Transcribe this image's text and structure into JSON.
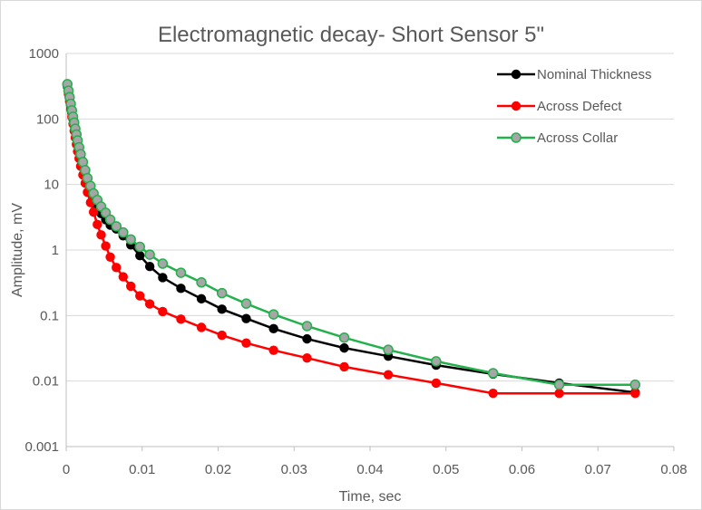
{
  "chart_data": {
    "type": "scatter",
    "title": "Electromagnetic decay- Short Sensor 5\"",
    "xlabel": "Time, sec",
    "ylabel": "Amplitude, mV",
    "xlim": [
      0,
      0.08
    ],
    "ylim": [
      0.001,
      1000
    ],
    "yscale": "log",
    "grid": "horizontal",
    "legend_position": "top-right",
    "x_ticks": [
      "0",
      "0.01",
      "0.02",
      "0.03",
      "0.04",
      "0.05",
      "0.06",
      "0.07",
      "0.08"
    ],
    "y_ticks": [
      "0.001",
      "0.01",
      "0.1",
      "1",
      "10",
      "100",
      "1000"
    ],
    "series": [
      {
        "name": "Nominal Thickness",
        "color": "#000000",
        "x": [
          0.00015,
          0.0003,
          0.00045,
          0.0006,
          0.00075,
          0.0009,
          0.00105,
          0.0012,
          0.00135,
          0.0015,
          0.0017,
          0.0019,
          0.0022,
          0.0025,
          0.0028,
          0.0032,
          0.0036,
          0.0041,
          0.0046,
          0.0052,
          0.0058,
          0.0066,
          0.0075,
          0.0085,
          0.0097,
          0.011,
          0.0127,
          0.0151,
          0.0178,
          0.0205,
          0.0237,
          0.0273,
          0.0317,
          0.0366,
          0.0424,
          0.0487,
          0.0562,
          0.0649,
          0.0749
        ],
        "y": [
          330,
          260,
          205,
          160,
          125,
          100,
          80,
          64,
          52,
          42,
          33,
          26,
          19,
          14,
          10.5,
          7.8,
          5.9,
          4.5,
          3.6,
          2.9,
          2.4,
          2.1,
          1.65,
          1.2,
          0.82,
          0.56,
          0.38,
          0.26,
          0.18,
          0.125,
          0.09,
          0.063,
          0.044,
          0.032,
          0.024,
          0.0175,
          0.0128,
          0.0093,
          0.0067
        ]
      },
      {
        "name": "Across Defect",
        "color": "#ff0000",
        "x": [
          0.00015,
          0.0003,
          0.00045,
          0.0006,
          0.00075,
          0.0009,
          0.00105,
          0.0012,
          0.00135,
          0.0015,
          0.0017,
          0.0019,
          0.0022,
          0.0025,
          0.0028,
          0.0032,
          0.0036,
          0.0041,
          0.0046,
          0.0052,
          0.0058,
          0.0066,
          0.0075,
          0.0085,
          0.0097,
          0.011,
          0.0127,
          0.0151,
          0.0178,
          0.0205,
          0.0237,
          0.0273,
          0.0317,
          0.0366,
          0.0424,
          0.0487,
          0.0562,
          0.0649,
          0.0749
        ],
        "y": [
          310,
          240,
          185,
          140,
          108,
          84,
          66,
          52,
          41,
          32,
          25,
          19,
          14,
          10.5,
          7.6,
          5.3,
          3.8,
          2.45,
          1.7,
          1.15,
          0.78,
          0.54,
          0.39,
          0.28,
          0.2,
          0.15,
          0.115,
          0.088,
          0.066,
          0.05,
          0.038,
          0.0295,
          0.0225,
          0.0165,
          0.0125,
          0.0093,
          0.0065,
          0.0065,
          0.0065
        ]
      },
      {
        "name": "Across Collar",
        "color": "#22b14c",
        "x": [
          0.00015,
          0.0003,
          0.00045,
          0.0006,
          0.00075,
          0.0009,
          0.00105,
          0.0012,
          0.00135,
          0.0015,
          0.0017,
          0.0019,
          0.0022,
          0.0025,
          0.0028,
          0.0032,
          0.0036,
          0.0041,
          0.0046,
          0.0052,
          0.0058,
          0.0066,
          0.0075,
          0.0085,
          0.0097,
          0.011,
          0.0127,
          0.0151,
          0.0178,
          0.0205,
          0.0237,
          0.0273,
          0.0317,
          0.0366,
          0.0424,
          0.0487,
          0.0562,
          0.0649,
          0.0749
        ],
        "y": [
          340,
          270,
          215,
          170,
          135,
          108,
          88,
          71,
          58,
          47,
          37,
          29,
          22,
          16.5,
          12.5,
          9.5,
          7.3,
          5.8,
          4.6,
          3.7,
          2.9,
          2.3,
          1.85,
          1.45,
          1.12,
          0.85,
          0.62,
          0.45,
          0.32,
          0.22,
          0.152,
          0.104,
          0.069,
          0.046,
          0.03,
          0.02,
          0.0132,
          0.0088,
          0.0088
        ]
      }
    ]
  }
}
